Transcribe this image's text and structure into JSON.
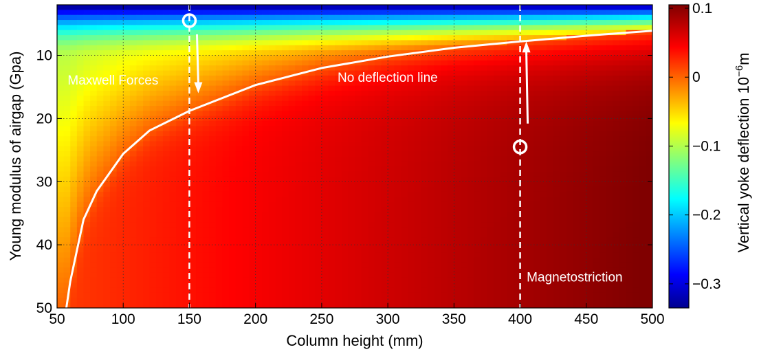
{
  "chart_data": {
    "type": "heatmap",
    "xlabel": "Column height (mm)",
    "ylabel": "Young modulus of airgap (Gpa)",
    "xlim": [
      50,
      500
    ],
    "ylim": [
      50,
      2
    ],
    "xticks": [
      "50",
      "100",
      "150",
      "200",
      "250",
      "300",
      "350",
      "400",
      "450",
      "500"
    ],
    "yticks": [
      "10",
      "20",
      "30",
      "40",
      "50"
    ],
    "grid": true,
    "colorbar": {
      "label": "Vertical yoke deflection 10",
      "label_exponent": "−6",
      "label_unit": "m",
      "range": [
        -0.335,
        0.105
      ],
      "ticks": [
        "0.1",
        "0",
        "−0.1",
        "−0.2",
        "−0.3"
      ]
    },
    "no_deflection_line": {
      "label": "No deflection line",
      "x": [
        57,
        60,
        70,
        80,
        100,
        120,
        150,
        200,
        250,
        300,
        350,
        400,
        450,
        500
      ],
      "y": [
        50,
        45.8,
        36,
        31.5,
        25.6,
        21.9,
        18.8,
        14.7,
        12,
        10.2,
        8.8,
        7.8,
        6.9,
        6.1
      ]
    },
    "vertical_lines": [
      150,
      400
    ],
    "markers": [
      {
        "x": 150,
        "y": 4.5,
        "arrow_to_y": 16
      },
      {
        "x": 400,
        "y": 24.5,
        "arrow_to_y": 7.8
      }
    ],
    "annotations": [
      {
        "text": "Maxwell Forces",
        "x": 58,
        "y": 14.6
      },
      {
        "text": "No deflection line",
        "x": 262,
        "y": 14.2
      },
      {
        "text": "Magnetostriction",
        "x": 405,
        "y": 45.8
      }
    ]
  }
}
